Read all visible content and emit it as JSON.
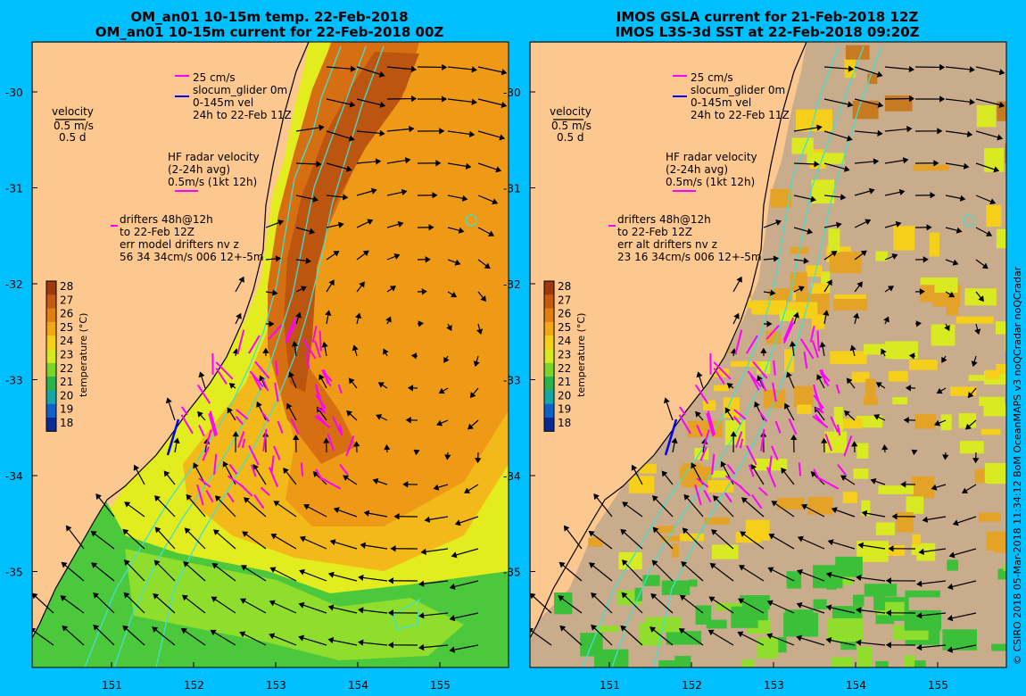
{
  "left_panel": {
    "title_line1": "OM_an01 10-15m temp. 22-Feb-2018",
    "title_line2": "OM_an01 10-15m current for 22-Feb-2018 00Z",
    "drifters_lines": [
      "drifters 48h@12h",
      "to 22-Feb 12Z",
      "err model drifters nv z",
      "56 34 34cm/s 006 12+-5m"
    ]
  },
  "right_panel": {
    "title_line1": "IMOS GSLA current for 21-Feb-2018 12Z",
    "title_line2": "IMOS L3S-3d SST at 22-Feb-2018 09:20Z",
    "drifters_lines": [
      "drifters 48h@12h",
      "to 22-Feb 12Z",
      "err alt drifters nv z",
      "23 16 34cm/s 006 12+-5m"
    ]
  },
  "legend": {
    "glider_lines": [
      "25 cm/s",
      "slocum_glider 0m",
      "0-145m vel",
      "24h to 22-Feb 11Z"
    ],
    "velocity_lines": [
      "velocity",
      "0.5 m/s",
      "0.5 d"
    ],
    "hf_radar_lines": [
      "HF radar velocity",
      "(2-24h avg)",
      "0.5m/s (1kt 12h)"
    ]
  },
  "colorbar": {
    "label": "temperature (°C)",
    "ticks": [
      "28",
      "27",
      "26",
      "25",
      "24",
      "23",
      "22",
      "21",
      "20",
      "19",
      "18"
    ],
    "colors": [
      "#a0390c",
      "#c85a10",
      "#e57e12",
      "#f5a615",
      "#f6cf1a",
      "#d6ea22",
      "#7ad42b",
      "#28b44a",
      "#14a6a8",
      "#1060cc",
      "#0a2a96"
    ]
  },
  "axes": {
    "lat_ticks": [
      "-30",
      "-31",
      "-32",
      "-33",
      "-34",
      "-35"
    ],
    "lon_ticks": [
      "151",
      "152",
      "153",
      "154",
      "155"
    ]
  },
  "credit": "© CSIRO 2018   05-Mar-2018 11:34:12 BoM OceanMAPS v3 noQCradar noQCradar",
  "colors": {
    "frame_background": "#00bfff",
    "land": "#fdc88f",
    "coastline": "#000000",
    "isobath": "#40e0d0",
    "glider_vectors": "#ff00ff",
    "model_current": "#000000",
    "cloud_mask": "#c8ac8c"
  }
}
